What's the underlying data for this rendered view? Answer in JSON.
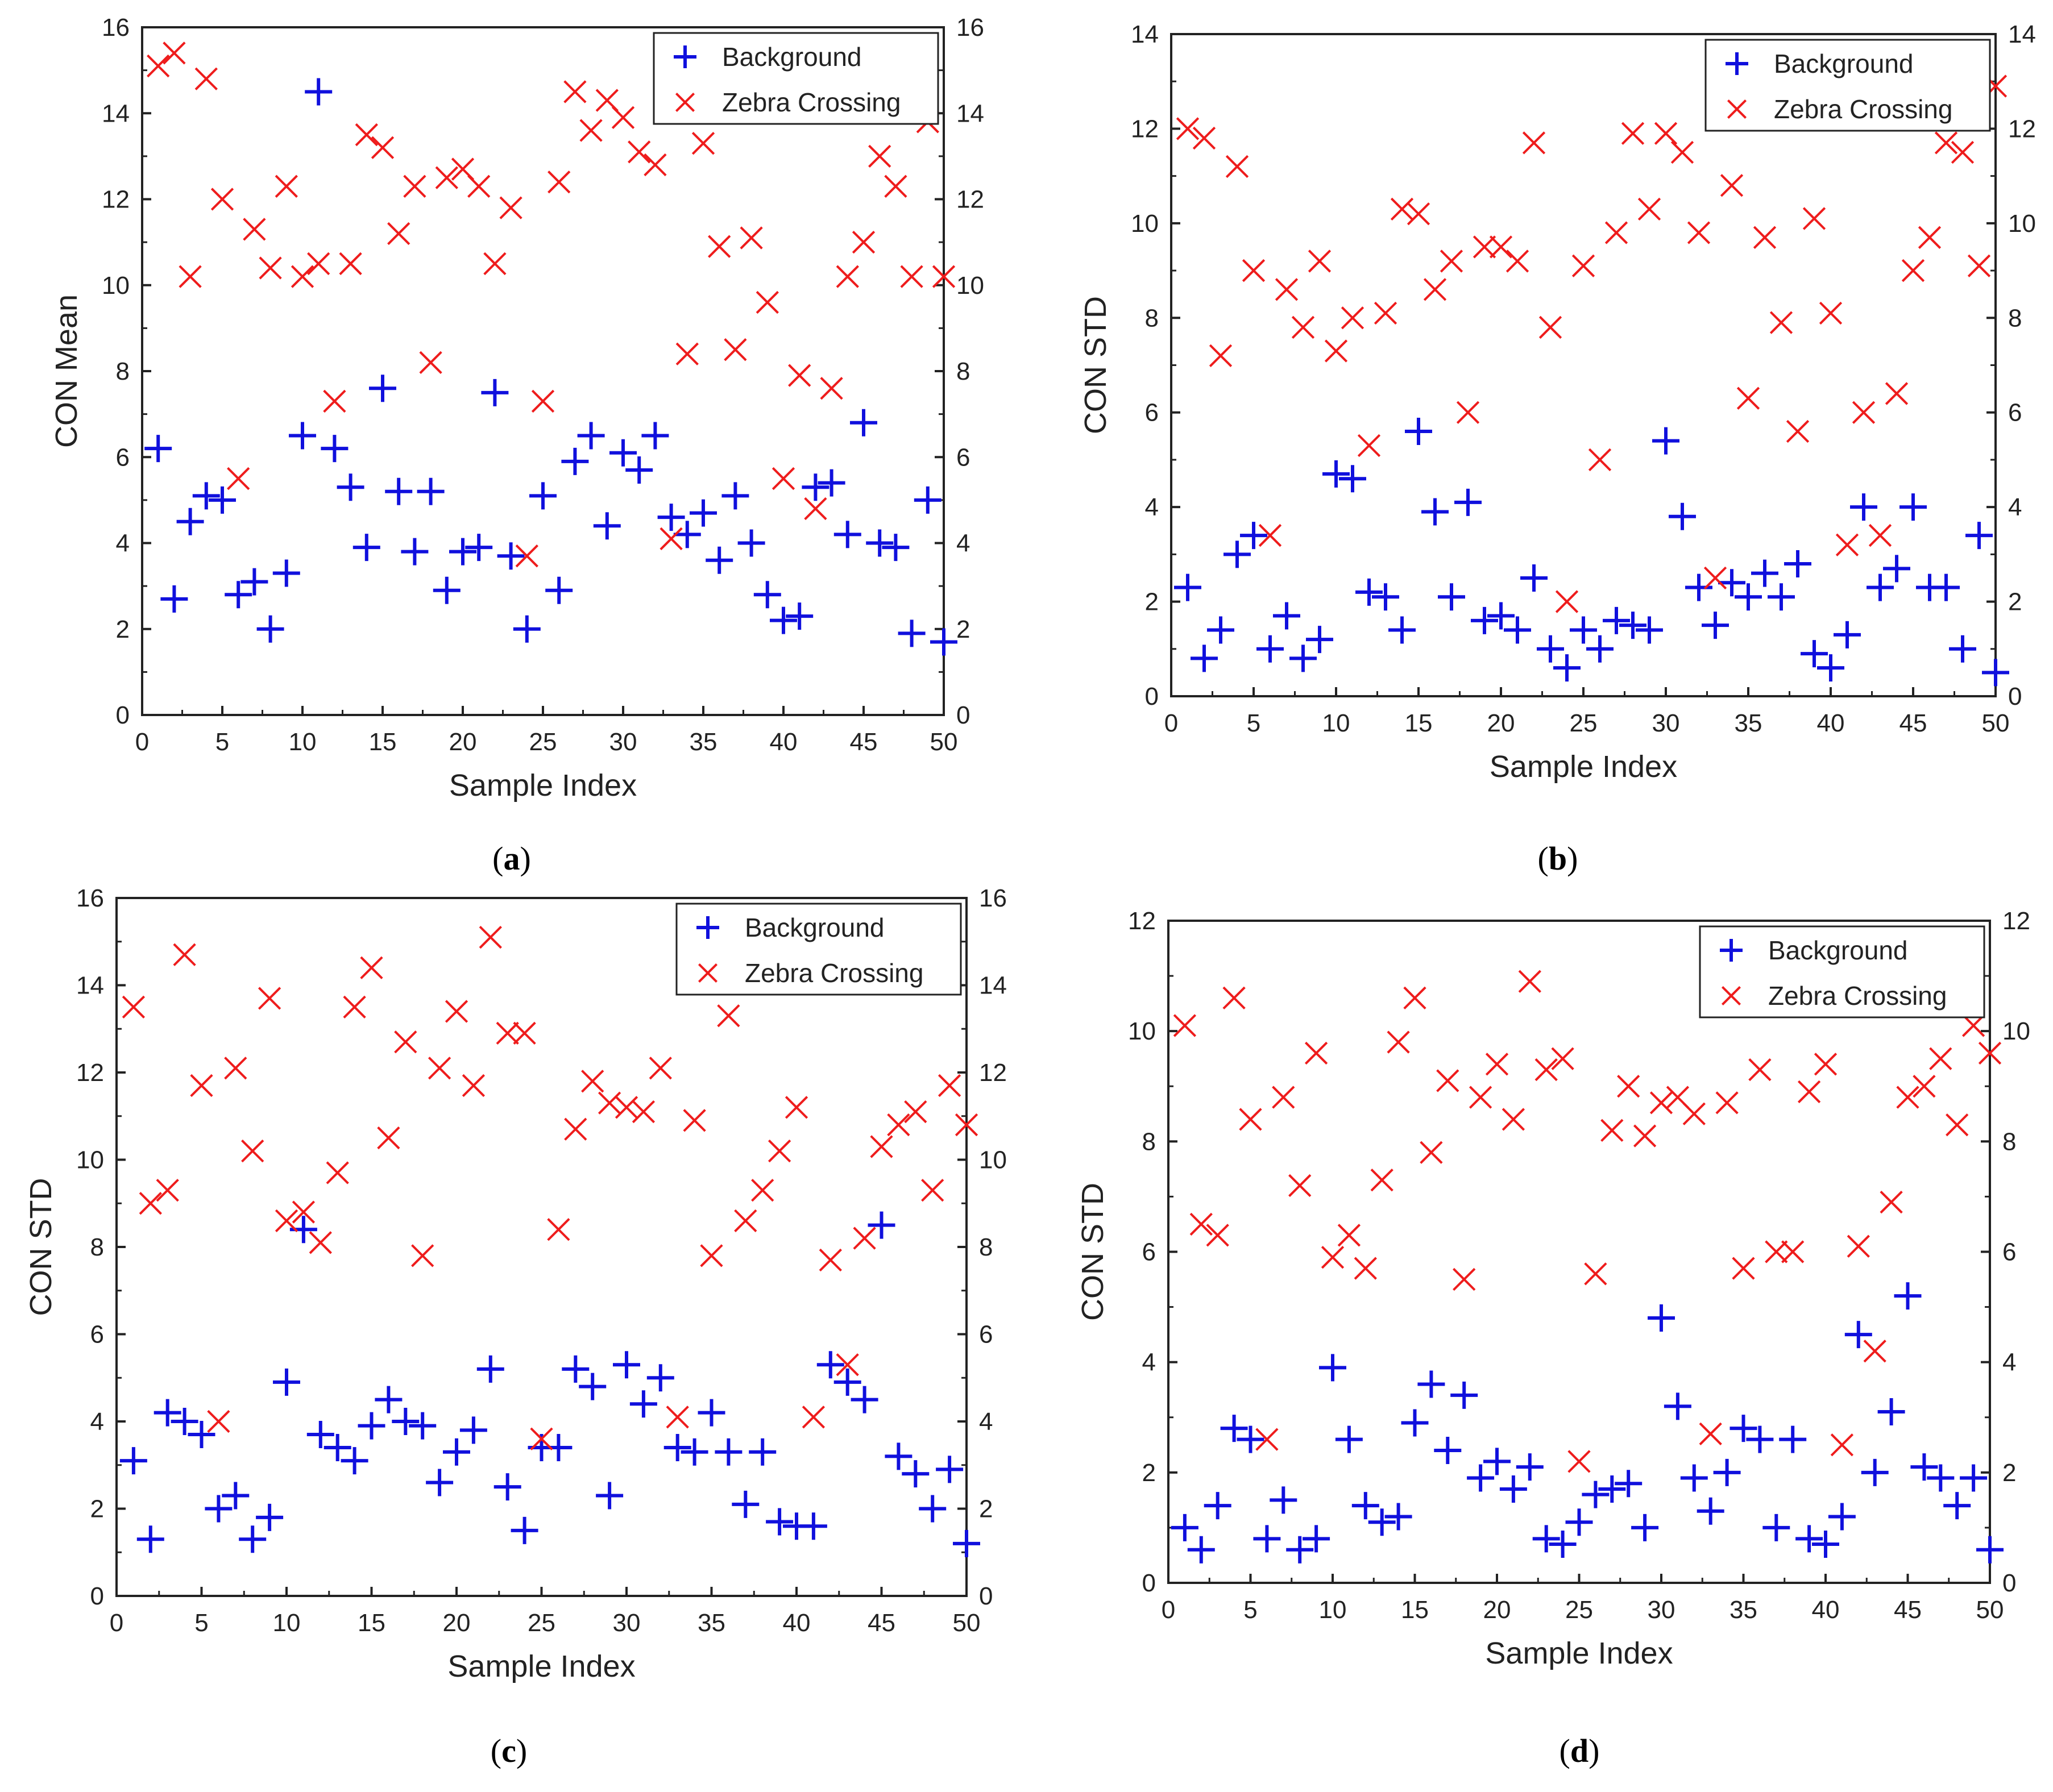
{
  "chart_data": [
    {
      "panel": "a",
      "type": "scatter",
      "caption_letter": "a",
      "xlabel": "Sample Index",
      "ylabel": "CON Mean",
      "xlim": [
        0,
        50
      ],
      "ylim": [
        0,
        16
      ],
      "xticks": [
        0,
        5,
        10,
        15,
        20,
        25,
        30,
        35,
        40,
        45,
        50
      ],
      "yticks": [
        0,
        2,
        4,
        6,
        8,
        10,
        12,
        14,
        16
      ],
      "right_axis": true,
      "legend_placement": "top-right",
      "series": [
        {
          "name": "Background",
          "marker": "plus",
          "color": "#1010dd",
          "x": [
            1,
            2,
            3,
            4,
            5,
            6,
            7,
            8,
            9,
            10,
            11,
            12,
            13,
            14,
            15,
            16,
            17,
            18,
            19,
            20,
            21,
            22,
            23,
            24,
            25,
            26,
            27,
            28,
            29,
            30,
            31,
            32,
            33,
            34,
            35,
            36,
            37,
            38,
            39,
            40,
            41,
            42,
            43,
            44,
            45,
            46,
            47,
            48,
            49,
            50
          ],
          "y": [
            6.2,
            2.7,
            4.5,
            5.1,
            5.0,
            2.8,
            3.1,
            2.0,
            3.3,
            6.5,
            14.5,
            6.2,
            5.3,
            3.9,
            7.6,
            5.2,
            3.8,
            5.2,
            2.9,
            3.8,
            3.9,
            7.5,
            3.7,
            2.0,
            5.1,
            2.9,
            5.9,
            6.5,
            4.4,
            6.1,
            5.7,
            6.5,
            4.6,
            4.2,
            4.7,
            3.6,
            5.1,
            4.0,
            2.8,
            2.2,
            2.3,
            5.3,
            5.4,
            4.2,
            6.8,
            4.0,
            3.9,
            1.9,
            5.0,
            1.7
          ]
        },
        {
          "name": "Zebra Crossing",
          "marker": "cross",
          "color": "#ee1c1c",
          "x": [
            1,
            2,
            3,
            4,
            5,
            6,
            7,
            8,
            9,
            10,
            11,
            12,
            13,
            14,
            15,
            16,
            17,
            18,
            19,
            20,
            21,
            22,
            23,
            24,
            25,
            26,
            27,
            28,
            29,
            30,
            31,
            32,
            33,
            34,
            35,
            36,
            37,
            38,
            39,
            40,
            41,
            42,
            43,
            44,
            45,
            46,
            47,
            48,
            49,
            50
          ],
          "y": [
            15.1,
            15.4,
            10.2,
            14.8,
            12.0,
            5.5,
            11.3,
            10.4,
            12.3,
            10.2,
            10.5,
            7.3,
            10.5,
            13.5,
            13.2,
            11.2,
            12.3,
            8.2,
            12.5,
            12.7,
            12.3,
            10.5,
            11.8,
            3.7,
            7.3,
            12.4,
            14.5,
            13.6,
            14.3,
            13.9,
            13.1,
            12.8,
            4.1,
            8.4,
            13.3,
            10.9,
            8.5,
            11.1,
            9.6,
            5.5,
            7.9,
            4.8,
            7.6,
            10.2,
            11.0,
            13.0,
            12.3,
            10.2,
            13.8,
            10.2
          ]
        }
      ]
    },
    {
      "panel": "b",
      "type": "scatter",
      "caption_letter": "b",
      "xlabel": "Sample Index",
      "ylabel": "CON STD",
      "xlim": [
        0,
        50
      ],
      "ylim": [
        0,
        14
      ],
      "xticks": [
        0,
        5,
        10,
        15,
        20,
        25,
        30,
        35,
        40,
        45,
        50
      ],
      "yticks": [
        0,
        2,
        4,
        6,
        8,
        10,
        12,
        14
      ],
      "right_axis": true,
      "legend_placement": "top-right",
      "series": [
        {
          "name": "Background",
          "marker": "plus",
          "color": "#1010dd",
          "x": [
            1,
            2,
            3,
            4,
            5,
            6,
            7,
            8,
            9,
            10,
            11,
            12,
            13,
            14,
            15,
            16,
            17,
            18,
            19,
            20,
            21,
            22,
            23,
            24,
            25,
            26,
            27,
            28,
            29,
            30,
            31,
            32,
            33,
            34,
            35,
            36,
            37,
            38,
            39,
            40,
            41,
            42,
            43,
            44,
            45,
            46,
            47,
            48,
            49,
            50
          ],
          "y": [
            2.3,
            0.8,
            1.4,
            3.0,
            3.4,
            1.0,
            1.7,
            0.8,
            1.2,
            4.7,
            4.6,
            2.2,
            2.1,
            1.4,
            5.6,
            3.9,
            2.1,
            4.1,
            1.6,
            1.7,
            1.4,
            2.5,
            1.0,
            0.6,
            1.4,
            1.0,
            1.6,
            1.5,
            1.4,
            5.4,
            3.8,
            2.3,
            1.5,
            2.4,
            2.1,
            2.6,
            2.1,
            2.8,
            0.9,
            0.6,
            1.3,
            4.0,
            2.3,
            2.7,
            4.0,
            2.3,
            2.3,
            1.0,
            3.4,
            0.5
          ]
        },
        {
          "name": "Zebra Crossing",
          "marker": "cross",
          "color": "#ee1c1c",
          "x": [
            1,
            2,
            3,
            4,
            5,
            6,
            7,
            8,
            9,
            10,
            11,
            12,
            13,
            14,
            15,
            16,
            17,
            18,
            19,
            20,
            21,
            22,
            23,
            24,
            25,
            26,
            27,
            28,
            29,
            30,
            31,
            32,
            33,
            34,
            35,
            36,
            37,
            38,
            39,
            40,
            41,
            42,
            43,
            44,
            45,
            46,
            47,
            48,
            49,
            50
          ],
          "y": [
            12.0,
            11.8,
            7.2,
            11.2,
            9.0,
            3.4,
            8.6,
            7.8,
            9.2,
            7.3,
            8.0,
            5.3,
            8.1,
            10.3,
            10.2,
            8.6,
            9.2,
            6.0,
            9.5,
            9.5,
            9.2,
            11.7,
            7.8,
            2.0,
            9.1,
            5.0,
            9.8,
            11.9,
            10.3,
            11.9,
            11.5,
            9.8,
            2.5,
            10.8,
            6.3,
            9.7,
            7.9,
            5.6,
            10.1,
            8.1,
            3.2,
            6.0,
            3.4,
            6.4,
            9.0,
            9.7,
            11.7,
            11.5,
            9.1,
            12.9
          ]
        }
      ]
    },
    {
      "panel": "c",
      "type": "scatter",
      "caption_letter": "c",
      "xlabel": "Sample Index",
      "ylabel": "CON STD",
      "xlim": [
        0,
        50
      ],
      "ylim": [
        0,
        16
      ],
      "xticks": [
        0,
        5,
        10,
        15,
        20,
        25,
        30,
        35,
        40,
        45,
        50
      ],
      "yticks": [
        0,
        2,
        4,
        6,
        8,
        10,
        12,
        14,
        16
      ],
      "right_axis": true,
      "legend_placement": "top-right",
      "series": [
        {
          "name": "Background",
          "marker": "plus",
          "color": "#1010dd",
          "x": [
            1,
            2,
            3,
            4,
            5,
            6,
            7,
            8,
            9,
            10,
            11,
            12,
            13,
            14,
            15,
            16,
            17,
            18,
            19,
            20,
            21,
            22,
            23,
            24,
            25,
            26,
            27,
            28,
            29,
            30,
            31,
            32,
            33,
            34,
            35,
            36,
            37,
            38,
            39,
            40,
            41,
            42,
            43,
            44,
            45,
            46,
            47,
            48,
            49,
            50
          ],
          "y": [
            3.1,
            1.3,
            4.2,
            4.0,
            3.7,
            2.0,
            2.3,
            1.3,
            1.8,
            4.9,
            8.4,
            3.7,
            3.4,
            3.1,
            3.9,
            4.5,
            4.0,
            3.9,
            2.6,
            3.3,
            3.8,
            5.2,
            2.5,
            1.5,
            3.4,
            3.4,
            5.2,
            4.8,
            2.3,
            5.3,
            4.4,
            5.0,
            3.4,
            3.3,
            4.2,
            3.3,
            2.1,
            3.3,
            1.7,
            1.6,
            1.6,
            5.3,
            4.9,
            4.5,
            8.5,
            3.2,
            2.8,
            2.0,
            2.9,
            1.2
          ]
        },
        {
          "name": "Zebra Crossing",
          "marker": "cross",
          "color": "#ee1c1c",
          "x": [
            1,
            2,
            3,
            4,
            5,
            6,
            7,
            8,
            9,
            10,
            11,
            12,
            13,
            14,
            15,
            16,
            17,
            18,
            19,
            20,
            21,
            22,
            23,
            24,
            25,
            26,
            27,
            28,
            29,
            30,
            31,
            32,
            33,
            34,
            35,
            36,
            37,
            38,
            39,
            40,
            41,
            42,
            43,
            44,
            45,
            46,
            47,
            48,
            49,
            50
          ],
          "y": [
            13.5,
            9.0,
            9.3,
            14.7,
            11.7,
            4.0,
            12.1,
            10.2,
            13.7,
            8.6,
            8.8,
            8.1,
            9.7,
            13.5,
            14.4,
            10.5,
            12.7,
            7.8,
            12.1,
            13.4,
            11.7,
            15.1,
            12.9,
            12.9,
            3.6,
            8.4,
            10.7,
            11.8,
            11.3,
            11.2,
            11.1,
            12.1,
            4.1,
            10.9,
            7.8,
            13.3,
            8.6,
            9.3,
            10.2,
            11.2,
            4.1,
            7.7,
            5.3,
            8.2,
            10.3,
            10.8,
            11.1,
            9.3,
            11.7,
            10.8
          ]
        }
      ]
    },
    {
      "panel": "d",
      "type": "scatter",
      "caption_letter": "d",
      "xlabel": "Sample Index",
      "ylabel": "CON STD",
      "xlim": [
        0,
        50
      ],
      "ylim": [
        0,
        12
      ],
      "xticks": [
        0,
        5,
        10,
        15,
        20,
        25,
        30,
        35,
        40,
        45,
        50
      ],
      "yticks": [
        0,
        2,
        4,
        6,
        8,
        10,
        12
      ],
      "right_axis": true,
      "legend_placement": "top-right",
      "series": [
        {
          "name": "Background",
          "marker": "plus",
          "color": "#1010dd",
          "x": [
            1,
            2,
            3,
            4,
            5,
            6,
            7,
            8,
            9,
            10,
            11,
            12,
            13,
            14,
            15,
            16,
            17,
            18,
            19,
            20,
            21,
            22,
            23,
            24,
            25,
            26,
            27,
            28,
            29,
            30,
            31,
            32,
            33,
            34,
            35,
            36,
            37,
            38,
            39,
            40,
            41,
            42,
            43,
            44,
            45,
            46,
            47,
            48,
            49,
            50
          ],
          "y": [
            1.0,
            0.6,
            1.4,
            2.8,
            2.6,
            0.8,
            1.5,
            0.6,
            0.8,
            3.9,
            2.6,
            1.4,
            1.1,
            1.2,
            2.9,
            3.6,
            2.4,
            3.4,
            1.9,
            2.2,
            1.7,
            2.1,
            0.8,
            0.7,
            1.1,
            1.6,
            1.7,
            1.8,
            1.0,
            4.8,
            3.2,
            1.9,
            1.3,
            2.0,
            2.8,
            2.6,
            1.0,
            2.6,
            0.8,
            0.7,
            1.2,
            4.5,
            2.0,
            3.1,
            5.2,
            2.1,
            1.9,
            1.4,
            1.9,
            0.6
          ]
        },
        {
          "name": "Zebra Crossing",
          "marker": "cross",
          "color": "#ee1c1c",
          "x": [
            1,
            2,
            3,
            4,
            5,
            6,
            7,
            8,
            9,
            10,
            11,
            12,
            13,
            14,
            15,
            16,
            17,
            18,
            19,
            20,
            21,
            22,
            23,
            24,
            25,
            26,
            27,
            28,
            29,
            30,
            31,
            32,
            33,
            34,
            35,
            36,
            37,
            38,
            39,
            40,
            41,
            42,
            43,
            44,
            45,
            46,
            47,
            48,
            49,
            50
          ],
          "y": [
            10.1,
            6.5,
            6.3,
            10.6,
            8.4,
            2.6,
            8.8,
            7.2,
            9.6,
            5.9,
            6.3,
            5.7,
            7.3,
            9.8,
            10.6,
            7.8,
            9.1,
            5.5,
            8.8,
            9.4,
            8.4,
            10.9,
            9.3,
            9.5,
            2.2,
            5.6,
            8.2,
            9.0,
            8.1,
            8.7,
            8.8,
            8.5,
            2.7,
            8.7,
            5.7,
            9.3,
            6.0,
            6.0,
            8.9,
            9.4,
            2.5,
            6.1,
            4.2,
            6.9,
            8.8,
            9.0,
            9.5,
            8.3,
            10.1,
            9.6
          ]
        }
      ]
    }
  ]
}
